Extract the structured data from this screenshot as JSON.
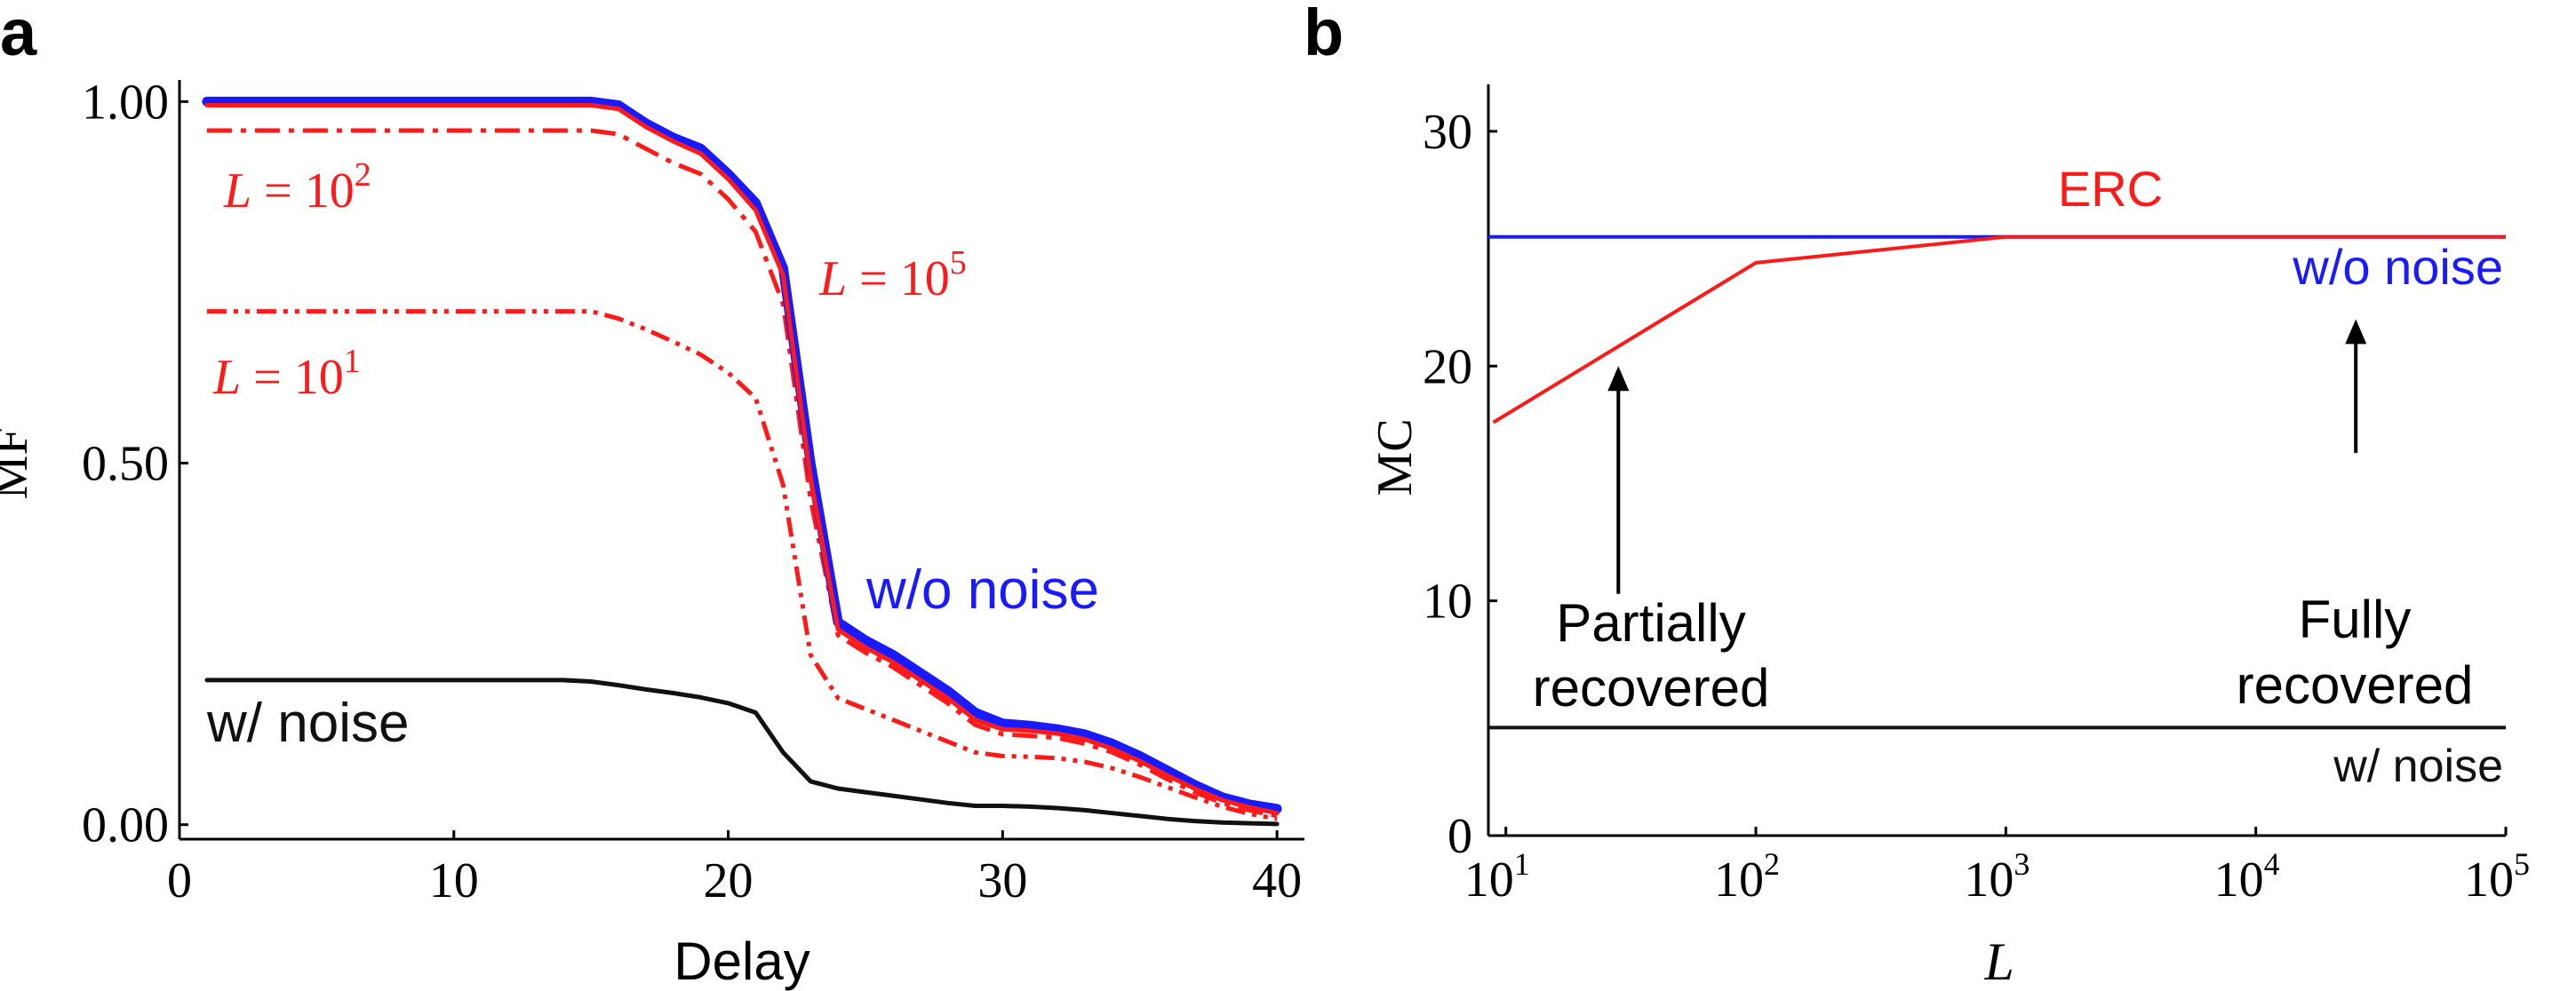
{
  "chart_data": [
    {
      "panel": "a",
      "type": "line",
      "xlabel": "Delay",
      "ylabel": "MF",
      "xlim": [
        0,
        41
      ],
      "ylim": [
        -0.02,
        1.03
      ],
      "xticks": [
        0,
        10,
        20,
        30,
        40
      ],
      "xtick_labels": [
        "0",
        "10",
        "20",
        "30",
        "40"
      ],
      "yticks": [
        0,
        0.5,
        1.0
      ],
      "ytick_labels": [
        "0.00",
        "0.50",
        "1.00"
      ],
      "x": [
        1,
        2,
        3,
        4,
        5,
        6,
        7,
        8,
        9,
        10,
        11,
        12,
        13,
        14,
        15,
        16,
        17,
        18,
        19,
        20,
        21,
        22,
        23,
        24,
        25,
        26,
        27,
        28,
        29,
        30,
        31,
        32,
        33,
        34,
        35,
        36,
        37,
        38,
        39,
        40
      ],
      "series": [
        {
          "name": "w/o noise",
          "color": "#1a1aff",
          "style": "solid",
          "values": [
            1.0,
            1.0,
            1.0,
            1.0,
            1.0,
            1.0,
            1.0,
            1.0,
            1.0,
            1.0,
            1.0,
            1.0,
            1.0,
            1.0,
            1.0,
            0.995,
            0.97,
            0.95,
            0.935,
            0.9,
            0.86,
            0.77,
            0.5,
            0.28,
            0.255,
            0.235,
            0.21,
            0.185,
            0.155,
            0.14,
            0.137,
            0.132,
            0.125,
            0.112,
            0.095,
            0.075,
            0.055,
            0.038,
            0.028,
            0.022
          ]
        },
        {
          "name": "L = 10^5",
          "color": "#ff1a1a",
          "style": "solid",
          "values": [
            0.995,
            0.995,
            0.995,
            0.995,
            0.995,
            0.995,
            0.995,
            0.995,
            0.995,
            0.995,
            0.995,
            0.995,
            0.995,
            0.995,
            0.995,
            0.99,
            0.965,
            0.945,
            0.928,
            0.893,
            0.85,
            0.76,
            0.48,
            0.27,
            0.245,
            0.225,
            0.2,
            0.175,
            0.145,
            0.132,
            0.13,
            0.126,
            0.118,
            0.105,
            0.088,
            0.068,
            0.05,
            0.034,
            0.024,
            0.016
          ]
        },
        {
          "name": "L = 10^2",
          "color": "#ff1a1a",
          "style": "dashdot",
          "values": [
            0.96,
            0.96,
            0.96,
            0.96,
            0.96,
            0.96,
            0.96,
            0.96,
            0.96,
            0.96,
            0.96,
            0.96,
            0.96,
            0.96,
            0.96,
            0.955,
            0.935,
            0.915,
            0.9,
            0.865,
            0.82,
            0.72,
            0.45,
            0.262,
            0.238,
            0.218,
            0.193,
            0.168,
            0.138,
            0.125,
            0.123,
            0.12,
            0.112,
            0.1,
            0.083,
            0.063,
            0.045,
            0.03,
            0.02,
            0.012
          ]
        },
        {
          "name": "L = 10^1",
          "color": "#ff1a1a",
          "style": "dashdotdot",
          "values": [
            0.71,
            0.71,
            0.71,
            0.71,
            0.71,
            0.71,
            0.71,
            0.71,
            0.71,
            0.71,
            0.71,
            0.71,
            0.71,
            0.71,
            0.71,
            0.7,
            0.685,
            0.668,
            0.65,
            0.625,
            0.59,
            0.47,
            0.235,
            0.175,
            0.16,
            0.145,
            0.13,
            0.115,
            0.1,
            0.095,
            0.094,
            0.092,
            0.087,
            0.078,
            0.066,
            0.052,
            0.038,
            0.025,
            0.015,
            0.008
          ]
        },
        {
          "name": "w/ noise",
          "color": "#111111",
          "style": "solid",
          "values": [
            0.2,
            0.2,
            0.2,
            0.2,
            0.2,
            0.2,
            0.2,
            0.2,
            0.2,
            0.2,
            0.2,
            0.2,
            0.2,
            0.2,
            0.198,
            0.193,
            0.187,
            0.182,
            0.176,
            0.168,
            0.155,
            0.1,
            0.06,
            0.05,
            0.045,
            0.04,
            0.035,
            0.03,
            0.026,
            0.026,
            0.025,
            0.023,
            0.02,
            0.016,
            0.012,
            0.008,
            0.005,
            0.003,
            0.002,
            0.001
          ]
        }
      ],
      "annotations": [
        "L = 10^2",
        "L = 10^5",
        "L = 10^1",
        "w/o noise",
        "w/ noise"
      ]
    },
    {
      "panel": "b",
      "type": "line",
      "xscale": "log",
      "xlabel": "L",
      "ylabel": "MC",
      "xlim": [
        0.93,
        5.0
      ],
      "ylim": [
        0,
        32
      ],
      "xtick_exponents": [
        1,
        2,
        3,
        4,
        5
      ],
      "xtick_base": "10",
      "yticks": [
        0,
        10,
        20,
        30
      ],
      "ytick_labels": [
        "0",
        "10",
        "20",
        "30"
      ],
      "series": [
        {
          "name": "ERC",
          "color": "#ff1a1a",
          "log10_x": [
            0.95,
            2.0,
            3.0,
            4.0,
            5.0
          ],
          "values": [
            17.6,
            24.4,
            25.5,
            25.5,
            25.5
          ]
        },
        {
          "name": "w/o noise",
          "color": "#1a1aff",
          "log10_x": [
            0.93,
            5.0
          ],
          "values": [
            25.5,
            25.5
          ]
        },
        {
          "name": "w/ noise",
          "color": "#111111",
          "log10_x": [
            0.93,
            5.0
          ],
          "values": [
            4.6,
            4.6
          ]
        }
      ],
      "annotations": [
        {
          "text_lines": [
            "Partially",
            "recovered"
          ],
          "arrow_log10_x": 1.45,
          "arrow_from_y": 10.3,
          "arrow_to_y": 20.0
        },
        {
          "text_lines": [
            "Fully",
            "recovered"
          ],
          "arrow_log10_x": 4.4,
          "arrow_from_y": 16.3,
          "arrow_to_y": 22.0
        }
      ],
      "labels": {
        "erc": "ERC",
        "wo_noise": "w/o noise",
        "w_noise": "w/ noise"
      }
    }
  ],
  "panel_labels": {
    "a": "a",
    "b": "b"
  }
}
